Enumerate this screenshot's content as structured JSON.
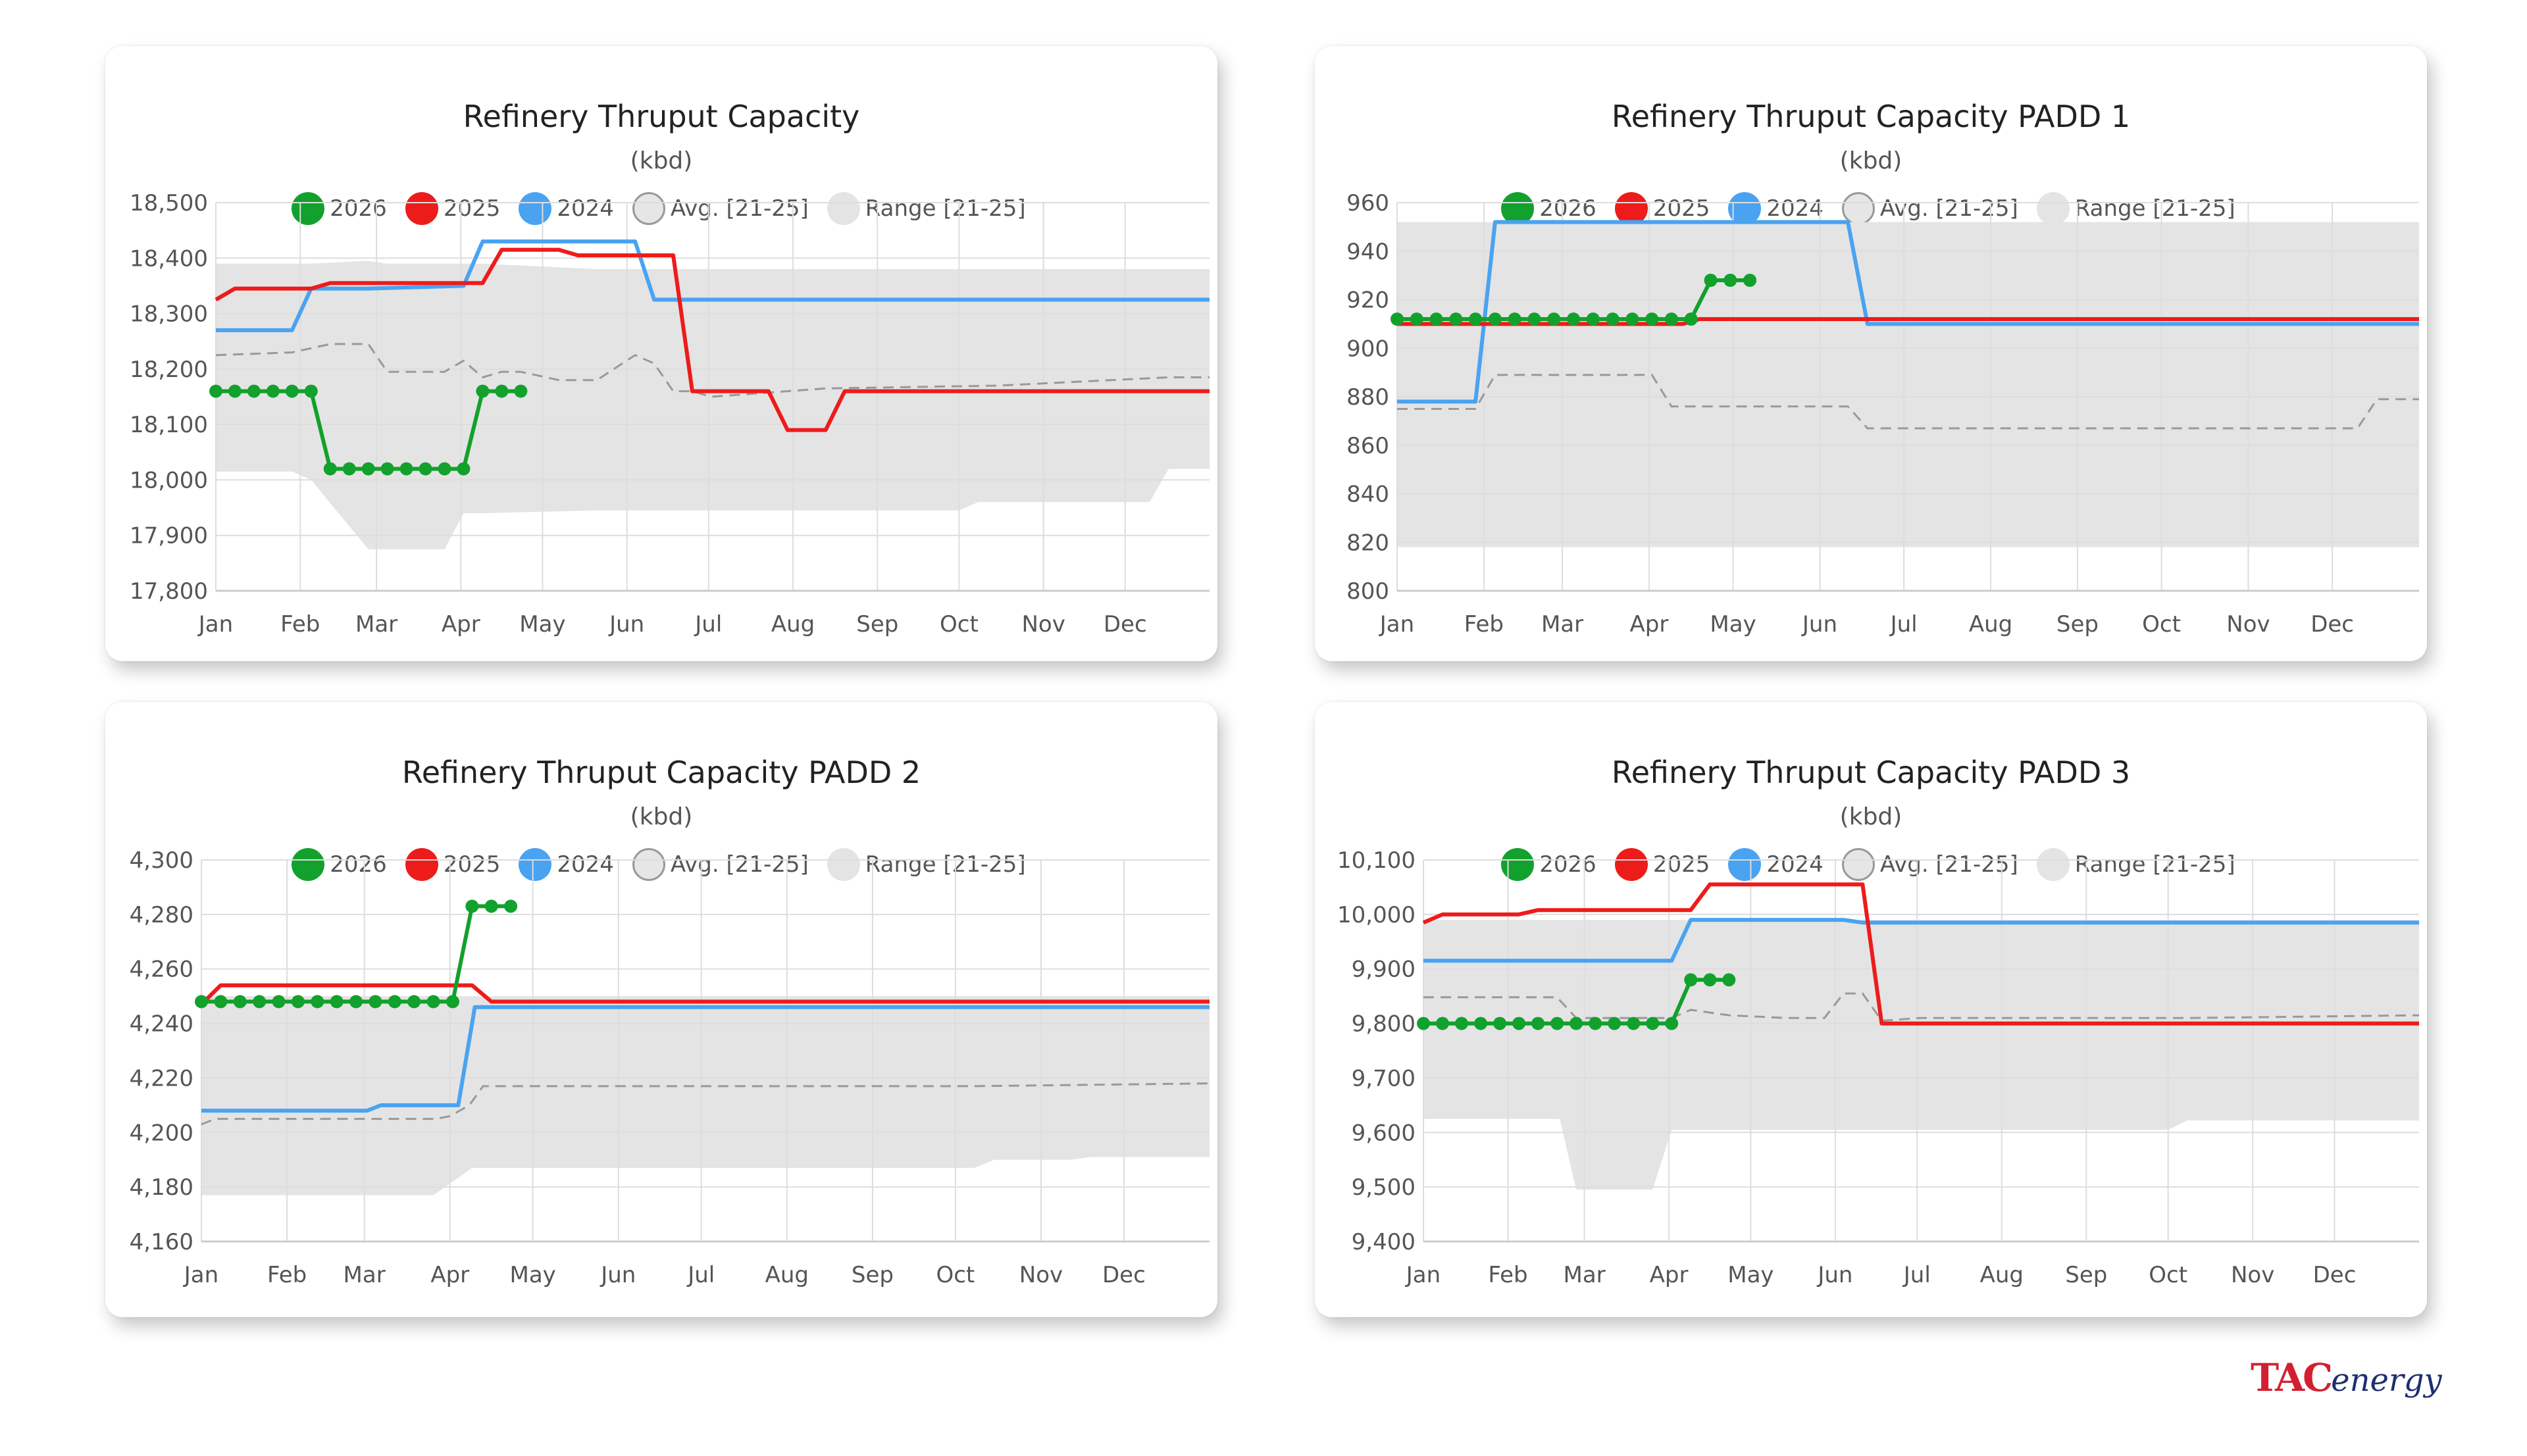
{
  "legend_items": [
    {
      "label": "2026",
      "color": "#12a12c"
    },
    {
      "label": "2025",
      "color": "#ee1b1b"
    },
    {
      "label": "2024",
      "color": "#4aa3f0"
    },
    {
      "label": "Avg. [21-25]",
      "color": "#e6e6e6"
    },
    {
      "label": "Range [21-25]",
      "color": "#e4e4e4"
    }
  ],
  "colors": {
    "s2026": "#12a12c",
    "s2025": "#ee1b1b",
    "s2024": "#4aa3f0",
    "avg": "#999999",
    "range": "#e4e4e4",
    "grid": "#dddddd"
  },
  "brand": {
    "tac": "TAC",
    "energy": "energy"
  },
  "chart_data": [
    {
      "type": "line",
      "title": "Refinery Thruput Capacity",
      "subtitle": "(kbd)",
      "x_tick_labels": [
        "Jan",
        "Feb",
        "Mar",
        "Apr",
        "May",
        "Jun",
        "Jul",
        "Aug",
        "Sep",
        "Oct",
        "Nov",
        "Dec"
      ],
      "xlim": [
        0,
        365
      ],
      "ylim": [
        17800,
        18500
      ],
      "y_ticks": [
        17800,
        17900,
        18000,
        18100,
        18200,
        18300,
        18400,
        18500
      ],
      "y_tick_labels": [
        "17,800",
        "17,900",
        "18,000",
        "18,100",
        "18,200",
        "18,300",
        "18,400",
        "18,500"
      ],
      "grid": true,
      "legend_position": "top-center",
      "range": {
        "x": [
          0,
          28,
          35,
          56,
          63,
          84,
          91,
          98,
          140,
          210,
          273,
          280,
          343,
          350,
          365
        ],
        "upper": [
          18390,
          18390,
          18390,
          18395,
          18390,
          18390,
          18390,
          18390,
          18380,
          18380,
          18380,
          18380,
          18380,
          18380,
          18380
        ],
        "lower": [
          18015,
          18015,
          18000,
          17875,
          17875,
          17875,
          17940,
          17940,
          17945,
          17945,
          17945,
          17960,
          17960,
          18020,
          18020
        ]
      },
      "series": [
        {
          "name": "2026",
          "markers": true,
          "x": [
            0,
            7,
            14,
            21,
            28,
            35,
            42,
            49,
            56,
            63,
            70,
            77,
            84,
            91,
            98,
            105,
            112
          ],
          "y": [
            18160,
            18160,
            18160,
            18160,
            18160,
            18160,
            18020,
            18020,
            18020,
            18020,
            18020,
            18020,
            18020,
            18020,
            18160,
            18160,
            18160
          ]
        },
        {
          "name": "2025",
          "markers": false,
          "x": [
            0,
            7,
            35,
            42,
            98,
            105,
            126,
            133,
            168,
            175,
            189,
            203,
            210,
            217,
            224,
            231,
            365
          ],
          "y": [
            18325,
            18345,
            18345,
            18355,
            18355,
            18415,
            18415,
            18405,
            18405,
            18160,
            18160,
            18160,
            18090,
            18090,
            18090,
            18160,
            18160
          ]
        },
        {
          "name": "2024",
          "markers": false,
          "x": [
            0,
            28,
            35,
            56,
            91,
            98,
            154,
            161,
            365
          ],
          "y": [
            18270,
            18270,
            18345,
            18345,
            18350,
            18430,
            18430,
            18325,
            18325
          ]
        },
        {
          "name": "Avg. [21-25]",
          "markers": false,
          "dashed": true,
          "x": [
            0,
            28,
            42,
            56,
            63,
            84,
            91,
            98,
            105,
            112,
            126,
            140,
            154,
            161,
            168,
            175,
            182,
            224,
            287,
            350,
            365
          ],
          "y": [
            18225,
            18230,
            18245,
            18245,
            18195,
            18195,
            18215,
            18185,
            18195,
            18195,
            18180,
            18180,
            18225,
            18210,
            18160,
            18160,
            18150,
            18165,
            18170,
            18185,
            18185
          ]
        }
      ]
    },
    {
      "type": "line",
      "title": "Refinery Thruput Capacity PADD 1",
      "subtitle": "(kbd)",
      "x_tick_labels": [
        "Jan",
        "Feb",
        "Mar",
        "Apr",
        "May",
        "Jun",
        "Jul",
        "Aug",
        "Sep",
        "Oct",
        "Nov",
        "Dec"
      ],
      "xlim": [
        0,
        365
      ],
      "ylim": [
        800,
        960
      ],
      "y_ticks": [
        800,
        820,
        840,
        860,
        880,
        900,
        920,
        940,
        960
      ],
      "y_tick_labels": [
        "800",
        "820",
        "840",
        "860",
        "880",
        "900",
        "920",
        "940",
        "960"
      ],
      "grid": true,
      "legend_position": "top-center",
      "range": {
        "x": [
          0,
          365
        ],
        "upper": [
          952,
          952
        ],
        "lower": [
          818,
          818
        ]
      },
      "series": [
        {
          "name": "2026",
          "markers": true,
          "x": [
            0,
            7,
            14,
            21,
            28,
            35,
            42,
            49,
            56,
            63,
            70,
            77,
            84,
            91,
            98,
            105,
            112,
            119,
            126
          ],
          "y": [
            912,
            912,
            912,
            912,
            912,
            912,
            912,
            912,
            912,
            912,
            912,
            912,
            912,
            912,
            912,
            912,
            928,
            928,
            928
          ]
        },
        {
          "name": "2025",
          "markers": false,
          "x": [
            0,
            102,
            108,
            365
          ],
          "y": [
            910,
            910,
            912,
            912
          ]
        },
        {
          "name": "2024",
          "markers": false,
          "x": [
            0,
            28,
            35,
            161,
            168,
            365
          ],
          "y": [
            878,
            878,
            952,
            952,
            910,
            910
          ]
        },
        {
          "name": "Avg. [21-25]",
          "markers": false,
          "dashed": true,
          "x": [
            0,
            28,
            35,
            91,
            98,
            161,
            168,
            343,
            350,
            365
          ],
          "y": [
            875,
            875,
            889,
            889,
            876,
            876,
            867,
            867,
            879,
            879
          ]
        }
      ]
    },
    {
      "type": "line",
      "title": "Refinery Thruput Capacity PADD 2",
      "subtitle": "(kbd)",
      "x_tick_labels": [
        "Jan",
        "Feb",
        "Mar",
        "Apr",
        "May",
        "Jun",
        "Jul",
        "Aug",
        "Sep",
        "Oct",
        "Nov",
        "Dec"
      ],
      "xlim": [
        0,
        365
      ],
      "ylim": [
        4160,
        4300
      ],
      "y_ticks": [
        4160,
        4180,
        4200,
        4220,
        4240,
        4260,
        4280,
        4300
      ],
      "y_tick_labels": [
        "4,160",
        "4,180",
        "4,200",
        "4,220",
        "4,240",
        "4,260",
        "4,280",
        "4,300"
      ],
      "grid": true,
      "legend_position": "top-center",
      "range": {
        "x": [
          0,
          84,
          98,
          280,
          287,
          315,
          322,
          365
        ],
        "upper": [
          4250,
          4250,
          4250,
          4250,
          4250,
          4250,
          4250,
          4250
        ],
        "lower": [
          4177,
          4177,
          4187,
          4187,
          4190,
          4190,
          4191,
          4191
        ]
      },
      "series": [
        {
          "name": "2026",
          "markers": true,
          "x": [
            0,
            7,
            14,
            21,
            28,
            35,
            42,
            49,
            56,
            63,
            70,
            77,
            84,
            91,
            98,
            105,
            112
          ],
          "y": [
            4248,
            4248,
            4248,
            4248,
            4248,
            4248,
            4248,
            4248,
            4248,
            4248,
            4248,
            4248,
            4248,
            4248,
            4283,
            4283,
            4283
          ]
        },
        {
          "name": "2025",
          "markers": false,
          "x": [
            0,
            7,
            98,
            105,
            365
          ],
          "y": [
            4247,
            4254,
            4254,
            4248,
            4248
          ]
        },
        {
          "name": "2024",
          "markers": false,
          "x": [
            0,
            60,
            65,
            93,
            99,
            365
          ],
          "y": [
            4208,
            4208,
            4210,
            4210,
            4246,
            4246
          ]
        },
        {
          "name": "Avg. [21-25]",
          "markers": false,
          "dashed": true,
          "x": [
            0,
            5,
            85,
            90,
            97,
            102,
            280,
            365
          ],
          "y": [
            4203,
            4205,
            4205,
            4206,
            4210,
            4217,
            4217,
            4218
          ]
        }
      ]
    },
    {
      "type": "line",
      "title": "Refinery Thruput Capacity PADD 3",
      "subtitle": "(kbd)",
      "x_tick_labels": [
        "Jan",
        "Feb",
        "Mar",
        "Apr",
        "May",
        "Jun",
        "Jul",
        "Aug",
        "Sep",
        "Oct",
        "Nov",
        "Dec"
      ],
      "xlim": [
        0,
        365
      ],
      "ylim": [
        9400,
        10100
      ],
      "y_ticks": [
        9400,
        9500,
        9600,
        9700,
        9800,
        9900,
        10000,
        10100
      ],
      "y_tick_labels": [
        "9,400",
        "9,500",
        "9,600",
        "9,700",
        "9,800",
        "9,900",
        "10,000",
        "10,100"
      ],
      "grid": true,
      "legend_position": "top-center",
      "range": {
        "x": [
          0,
          50,
          56,
          84,
          91,
          273,
          280,
          365
        ],
        "upper": [
          9990,
          9990,
          9990,
          9990,
          9990,
          9990,
          9990,
          9990
        ],
        "lower": [
          9625,
          9625,
          9495,
          9495,
          9605,
          9605,
          9622,
          9622
        ]
      },
      "series": [
        {
          "name": "2026",
          "markers": true,
          "x": [
            0,
            7,
            14,
            21,
            28,
            35,
            42,
            49,
            56,
            63,
            70,
            77,
            84,
            91,
            98,
            105,
            112
          ],
          "y": [
            9800,
            9800,
            9800,
            9800,
            9800,
            9800,
            9800,
            9800,
            9800,
            9800,
            9800,
            9800,
            9800,
            9800,
            9880,
            9880,
            9880
          ]
        },
        {
          "name": "2025",
          "markers": false,
          "x": [
            0,
            7,
            35,
            42,
            98,
            105,
            161,
            168,
            365
          ],
          "y": [
            9985,
            10000,
            10000,
            10008,
            10008,
            10055,
            10055,
            9800,
            9800
          ]
        },
        {
          "name": "2024",
          "markers": false,
          "x": [
            0,
            91,
            98,
            154,
            161,
            365
          ],
          "y": [
            9915,
            9915,
            9990,
            9990,
            9985,
            9985
          ]
        },
        {
          "name": "Avg. [21-25]",
          "markers": false,
          "dashed": true,
          "x": [
            0,
            49,
            56,
            91,
            98,
            112,
            133,
            147,
            154,
            161,
            168,
            182,
            280,
            365
          ],
          "y": [
            9848,
            9848,
            9810,
            9810,
            9825,
            9815,
            9810,
            9810,
            9855,
            9855,
            9805,
            9810,
            9810,
            9815
          ]
        }
      ]
    }
  ]
}
